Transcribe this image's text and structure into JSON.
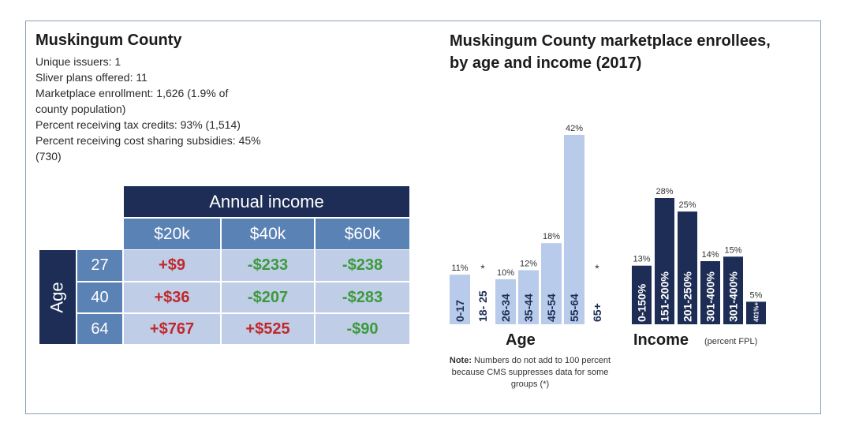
{
  "county": {
    "title": "Muskingum County",
    "facts": [
      "Unique issuers: 1",
      "Sliver plans offered: 11",
      "Marketplace enrollment: 1,626 (1.9% of",
      "county population)",
      "Percent receiving tax credits: 93% (1,514)",
      "Percent receiving cost sharing subsidies: 45%",
      "(730)"
    ]
  },
  "income_table": {
    "header": "Annual income",
    "columns": [
      "$20k",
      "$40k",
      "$60k"
    ],
    "row_label": "Age",
    "rows": [
      {
        "age": "27",
        "values": [
          "+$9",
          "-$233",
          "-$238"
        ]
      },
      {
        "age": "40",
        "values": [
          "+$36",
          "-$207",
          "-$283"
        ]
      },
      {
        "age": "64",
        "values": [
          "+$767",
          "+$525",
          "-$90"
        ]
      }
    ]
  },
  "chart_title": "Muskingum County marketplace enrollees, by age and income (2017)",
  "note": {
    "bold": "Note:",
    "text": " Numbers do not add to 100 percent because CMS suppresses data for some groups (*)"
  },
  "chart_data": [
    {
      "type": "bar",
      "title": "Age",
      "categories": [
        "0-17",
        "18- 25",
        "26-34",
        "35-44",
        "45-54",
        "55-64",
        "65+"
      ],
      "values": [
        11,
        null,
        10,
        12,
        18,
        42,
        null
      ],
      "labels": [
        "11%",
        "*",
        "10%",
        "12%",
        "18%",
        "42%",
        "*"
      ],
      "ylim": [
        0,
        42
      ],
      "color": "#b8cbeb"
    },
    {
      "type": "bar",
      "title": "Income",
      "subtitle": "(percent FPL)",
      "categories": [
        "0-150%",
        "151-200%",
        "201-250%",
        "301-400%",
        "301-400%",
        "401%+"
      ],
      "values": [
        13,
        28,
        25,
        14,
        15,
        5
      ],
      "labels": [
        "13%",
        "28%",
        "25%",
        "14%",
        "15%",
        "5%"
      ],
      "ylim": [
        0,
        42
      ],
      "color": "#1d2d55"
    }
  ],
  "colors": {
    "navy": "#1d2d55",
    "mid_blue": "#5b82b5",
    "light_blue": "#bfcde6",
    "positive": "#c0282d",
    "negative": "#3c9a3c"
  }
}
